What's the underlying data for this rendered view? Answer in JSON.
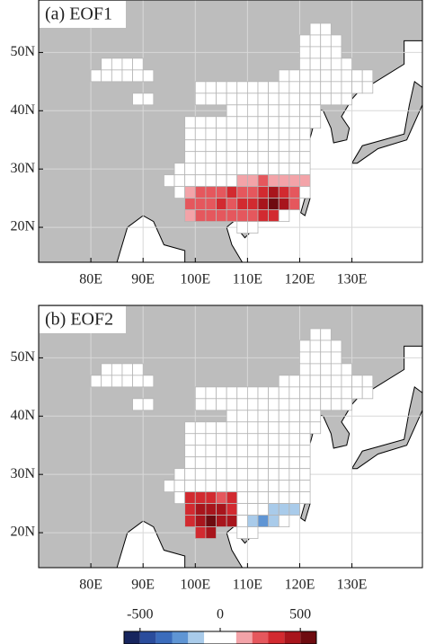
{
  "lonlim": [
    70,
    143.5
  ],
  "latlim": [
    14,
    59
  ],
  "lonticks": [
    {
      "value": 80,
      "label": "80E"
    },
    {
      "value": 90,
      "label": "90E"
    },
    {
      "value": 100,
      "label": "100E"
    },
    {
      "value": 110,
      "label": "110E"
    },
    {
      "value": 120,
      "label": "120E"
    },
    {
      "value": 130,
      "label": "130E"
    }
  ],
  "latticks": [
    {
      "value": 20,
      "label": "20N"
    },
    {
      "value": 30,
      "label": "30N"
    },
    {
      "value": 40,
      "label": "40N"
    },
    {
      "value": 50,
      "label": "50N"
    }
  ],
  "grid_cells": [
    [
      54,
      122,
      126
    ],
    [
      52,
      120,
      128
    ],
    [
      50,
      120,
      128
    ],
    [
      48,
      82,
      90
    ],
    [
      48,
      120,
      130
    ],
    [
      46,
      80,
      92
    ],
    [
      46,
      116,
      134
    ],
    [
      44,
      100,
      134
    ],
    [
      42,
      88,
      92
    ],
    [
      42,
      100,
      130
    ],
    [
      40,
      106,
      124
    ],
    [
      38,
      98,
      124
    ],
    [
      36,
      98,
      122
    ],
    [
      34,
      98,
      122
    ],
    [
      32,
      98,
      122
    ],
    [
      30,
      96,
      122
    ],
    [
      28,
      94,
      122
    ],
    [
      26,
      96,
      122
    ],
    [
      24,
      98,
      120
    ],
    [
      22,
      98,
      118
    ],
    [
      20,
      108,
      112
    ]
  ],
  "panels": [
    {
      "title": "(a) EOF1",
      "rows": [
        {
          "lat": 28,
          "lon0": 108,
          "values": [
            100,
            150,
            200,
            150,
            150,
            100,
            100
          ]
        },
        {
          "lat": 26,
          "lon0": 98,
          "values": [
            150,
            200,
            200,
            250,
            300,
            200,
            250,
            350,
            400,
            350,
            200
          ]
        },
        {
          "lat": 24,
          "lon0": 98,
          "values": [
            200,
            250,
            200,
            300,
            250,
            300,
            300,
            400,
            500,
            450,
            250
          ]
        },
        {
          "lat": 22,
          "lon0": 98,
          "values": [
            150,
            200,
            250,
            250,
            250,
            200,
            200,
            300,
            350
          ]
        }
      ]
    },
    {
      "title": "(b) EOF2",
      "rows": [
        {
          "lat": 26,
          "lon0": 98,
          "values": [
            300,
            350,
            300,
            250,
            300
          ]
        },
        {
          "lat": 24,
          "lon0": 98,
          "values": [
            350,
            400,
            450,
            400,
            300
          ]
        },
        {
          "lat": 24,
          "lon0": 110,
          "values": [
            -100,
            -100,
            -150,
            -200,
            -150
          ]
        },
        {
          "lat": 22,
          "lon0": 98,
          "values": [
            300,
            450,
            500,
            450,
            400
          ]
        },
        {
          "lat": 22,
          "lon0": 108,
          "values": [
            -100,
            -200,
            -300,
            -150
          ]
        },
        {
          "lat": 20,
          "lon0": 100,
          "values": [
            350,
            400
          ]
        }
      ]
    }
  ],
  "colorbar": {
    "bounds": [
      -600,
      -500,
      -400,
      -300,
      -200,
      -100,
      0,
      100,
      200,
      300,
      400,
      500,
      600
    ],
    "colors": [
      "#17255e",
      "#2a4c9c",
      "#3b6cbc",
      "#5f95d4",
      "#a9cbea",
      "#ffffff",
      "#ffffff",
      "#f3a3a8",
      "#e5575d",
      "#d22a30",
      "#a8151c",
      "#6e0b10"
    ],
    "ticks": [
      -500,
      0,
      500
    ]
  }
}
